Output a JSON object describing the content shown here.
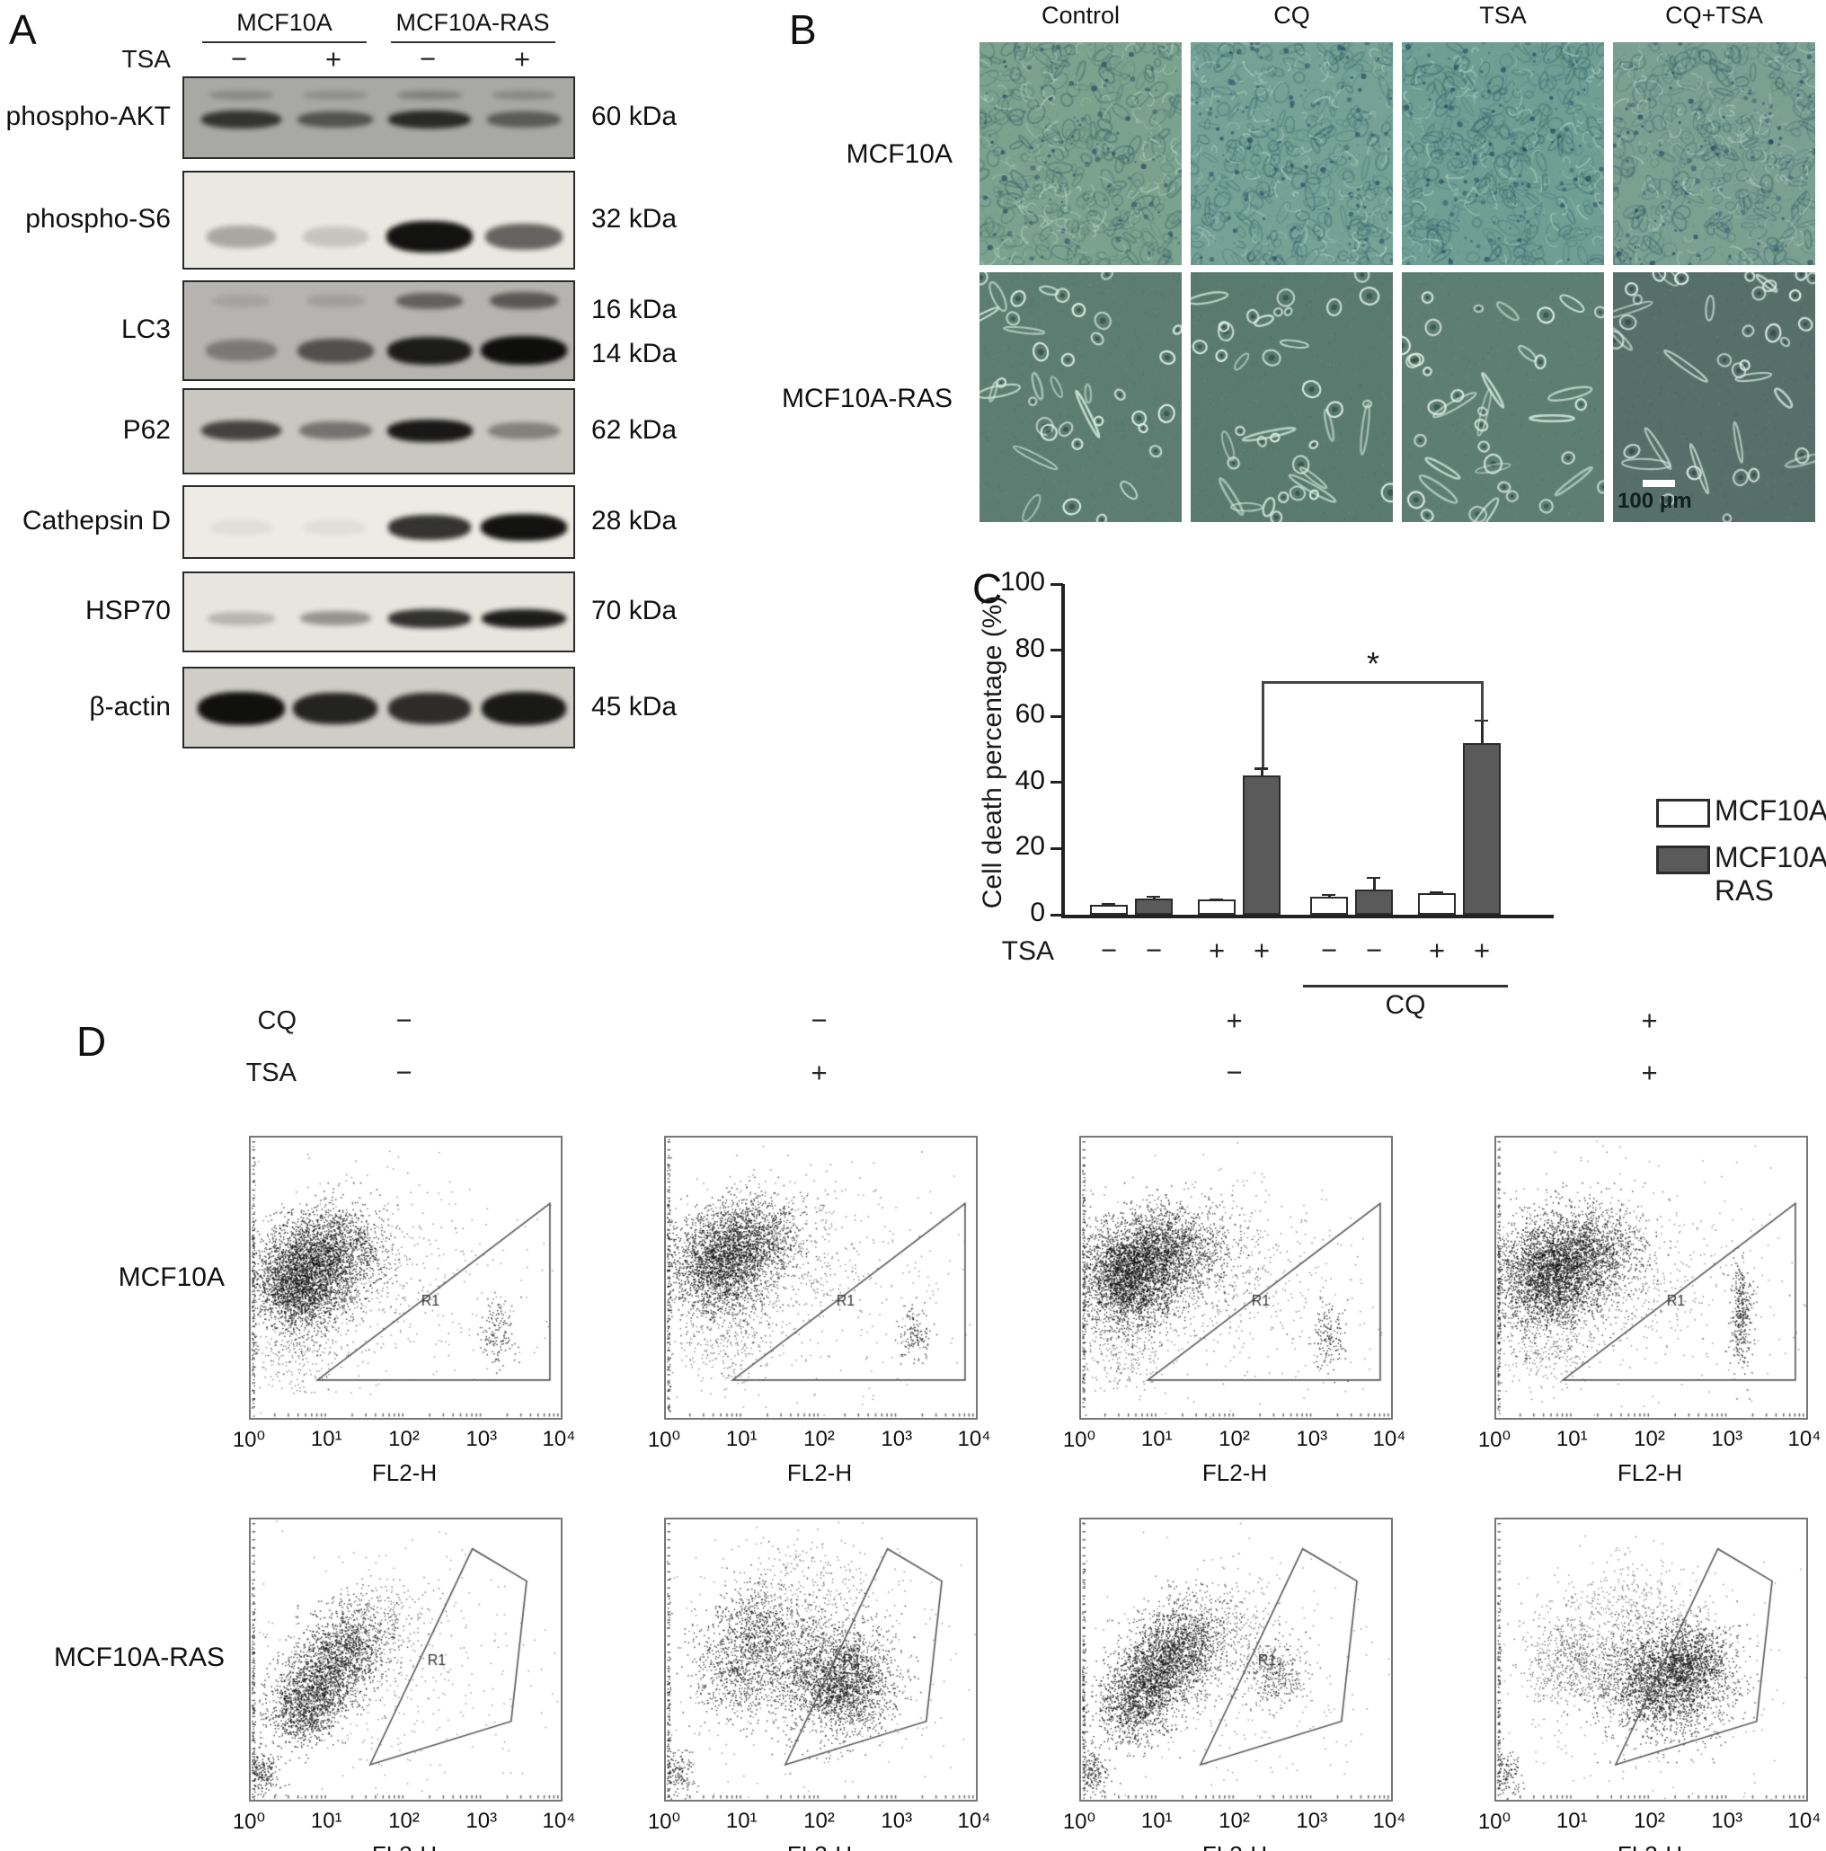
{
  "panelA": {
    "label": "A",
    "groups": [
      "MCF10A",
      "MCF10A-RAS"
    ],
    "tsa_row": {
      "label": "TSA",
      "signs": [
        "−",
        "+",
        "−",
        "+"
      ]
    },
    "blots": [
      {
        "target": "phospho-AKT",
        "kda": [
          "60 kDa"
        ],
        "bg": "#a8a8a4",
        "bands": [
          {
            "y": 0.14,
            "h": 0.13,
            "w": 0.95,
            "alphas": [
              0.2,
              0.16,
              0.25,
              0.2
            ]
          },
          {
            "y": 0.4,
            "h": 0.2,
            "w": 1,
            "alphas": [
              0.75,
              0.55,
              0.82,
              0.5
            ]
          }
        ]
      },
      {
        "target": "phospho-S6",
        "kda": [
          "32 kDa"
        ],
        "bg": "#eae8e2",
        "bands": [
          {
            "y": 0.52,
            "h": 0.26,
            "w": 1,
            "alphas": [
              0.3,
              0.16,
              1,
              0.62
            ]
          }
        ]
      },
      {
        "target": "LC3",
        "kda": [
          "16 kDa",
          "14 kDa"
        ],
        "bg": "#b6b4b0",
        "bands": [
          {
            "y": 0.1,
            "h": 0.17,
            "w": 0.9,
            "alphas": [
              0.1,
              0.12,
              0.5,
              0.55
            ]
          },
          {
            "y": 0.56,
            "h": 0.24,
            "w": 1,
            "alphas": [
              0.35,
              0.6,
              0.92,
              1
            ]
          }
        ]
      },
      {
        "target": "P62",
        "kda": [
          "62 kDa"
        ],
        "bg": "#c9c7c1",
        "bands": [
          {
            "y": 0.36,
            "h": 0.22,
            "w": 1,
            "alphas": [
              0.72,
              0.45,
              0.95,
              0.38
            ]
          }
        ]
      },
      {
        "target": "Cathepsin D",
        "kda": [
          "28 kDa"
        ],
        "bg": "#edebe5",
        "bands": [
          {
            "y": 0.4,
            "h": 0.3,
            "w": 1,
            "alphas": [
              0.05,
              0.05,
              0.85,
              1
            ]
          }
        ]
      },
      {
        "target": "HSP70",
        "kda": [
          "70 kDa"
        ],
        "bg": "#e7e5df",
        "bands": [
          {
            "y": 0.46,
            "h": 0.2,
            "w": 1,
            "alphas": [
              0.22,
              0.38,
              0.85,
              0.95
            ]
          }
        ]
      },
      {
        "target": "β-actin",
        "kda": [
          "45 kDa"
        ],
        "bg": "#cfcdc7",
        "bands": [
          {
            "y": 0.32,
            "h": 0.34,
            "w": 1,
            "alphas": [
              1,
              0.9,
              0.85,
              0.95
            ]
          }
        ]
      }
    ]
  },
  "panelB": {
    "label": "B",
    "columns": [
      "Control",
      "CQ",
      "TSA",
      "CQ+TSA"
    ],
    "rows": [
      {
        "label": "MCF10A",
        "style": "dense",
        "bg": [
          "#7ba28e",
          "#75a295",
          "#6f9e93",
          "#7aa092"
        ]
      },
      {
        "label": "MCF10A-RAS",
        "style": "sparse",
        "bg": [
          "#5d7d72",
          "#5a7a6f",
          "#5e7e73",
          "#566f68"
        ]
      }
    ],
    "scale_bar": "100 μm"
  },
  "panelC": {
    "label": "C"
  },
  "panelD": {
    "label": "D",
    "cq_row": {
      "label": "CQ",
      "signs": [
        "−",
        "−",
        "+",
        "+"
      ]
    },
    "tsa_row": {
      "label": "TSA",
      "signs": [
        "−",
        "+",
        "−",
        "+"
      ]
    },
    "row_labels": [
      "MCF10A",
      "MCF10A-RAS"
    ],
    "xlabel": "FL2-H",
    "xticks": [
      "10⁰",
      "10¹",
      "10²",
      "10³",
      "10⁴"
    ],
    "gate_label": "R1"
  },
  "chart_data": [
    {
      "type": "bar",
      "title": "",
      "ylabel": "Cell death percentage (%)",
      "ylim": [
        0,
        100
      ],
      "yticks": [
        0,
        20,
        40,
        60,
        80,
        100
      ],
      "group_axis": {
        "label": "TSA",
        "signs": [
          "−",
          "−",
          "+",
          "+",
          "−",
          "−",
          "+",
          "+"
        ],
        "cq_label": "CQ",
        "cq_span": [
          4,
          7
        ]
      },
      "series": [
        {
          "name": "MCF10A",
          "color": "#ffffff",
          "values": [
            3,
            4.5,
            5.5,
            6.5
          ],
          "errors": [
            0.5,
            0.5,
            0.8,
            0.5
          ]
        },
        {
          "name": "MCF10A-RAS",
          "color": "#5a5a5a",
          "values": [
            5,
            42,
            7.5,
            52
          ],
          "errors": [
            0.8,
            2.5,
            4,
            7
          ]
        }
      ],
      "significance": {
        "symbol": "*",
        "between": [
          "MCF10A-RAS TSA+",
          "MCF10A-RAS CQ+TSA+"
        ]
      },
      "legend_position": "right",
      "grid": false
    },
    {
      "type": "scatter",
      "xlabel": "FL2-H",
      "xscale": "log",
      "xlim": [
        1,
        10000
      ],
      "rows": [
        "MCF10A",
        "MCF10A-RAS"
      ],
      "conditions": [
        {
          "CQ": "−",
          "TSA": "−"
        },
        {
          "CQ": "−",
          "TSA": "+"
        },
        {
          "CQ": "+",
          "TSA": "−"
        },
        {
          "CQ": "+",
          "TSA": "+"
        }
      ],
      "gate_label": "R1",
      "gates": {
        "triangle": [
          [
            0.215,
            0.865
          ],
          [
            0.965,
            0.865
          ],
          [
            0.965,
            0.235
          ]
        ],
        "polygon": [
          [
            0.385,
            0.875
          ],
          [
            0.715,
            0.105
          ],
          [
            0.89,
            0.22
          ],
          [
            0.84,
            0.72
          ]
        ]
      },
      "gate_label_pos": {
        "triangle": [
          0.55,
          0.6
        ],
        "polygon": [
          0.57,
          0.52
        ]
      },
      "plots": [
        {
          "row": 0,
          "col": 0,
          "gate": "triangle",
          "clusters": [
            [
              0.155,
              0.52,
              0.075,
              0.085,
              2400
            ],
            [
              0.26,
              0.4,
              0.085,
              0.08,
              1400
            ],
            [
              0.3,
              0.47,
              0.16,
              0.14,
              500,
              0.55
            ],
            [
              0.48,
              0.52,
              0.28,
              0.22,
              280,
              0.45
            ],
            [
              0.795,
              0.7,
              0.028,
              0.055,
              140
            ],
            [
              0.006,
              0.55,
              0.004,
              0.27,
              160
            ],
            [
              0.15,
              0.78,
              0.08,
              0.07,
              200,
              0.5
            ]
          ]
        },
        {
          "row": 0,
          "col": 1,
          "gate": "triangle",
          "clusters": [
            [
              0.17,
              0.46,
              0.08,
              0.09,
              2000
            ],
            [
              0.28,
              0.35,
              0.08,
              0.07,
              1000
            ],
            [
              0.32,
              0.44,
              0.17,
              0.15,
              500,
              0.55
            ],
            [
              0.5,
              0.55,
              0.27,
              0.22,
              300,
              0.45
            ],
            [
              0.8,
              0.7,
              0.025,
              0.05,
              130
            ],
            [
              0.006,
              0.55,
              0.004,
              0.27,
              150
            ],
            [
              0.18,
              0.75,
              0.09,
              0.07,
              220,
              0.5
            ]
          ]
        },
        {
          "row": 0,
          "col": 2,
          "gate": "triangle",
          "clusters": [
            [
              0.15,
              0.5,
              0.08,
              0.09,
              2600
            ],
            [
              0.27,
              0.4,
              0.1,
              0.08,
              1600
            ],
            [
              0.35,
              0.47,
              0.18,
              0.14,
              550,
              0.55
            ],
            [
              0.5,
              0.55,
              0.28,
              0.22,
              300,
              0.45
            ],
            [
              0.8,
              0.71,
              0.027,
              0.055,
              150
            ],
            [
              0.006,
              0.55,
              0.004,
              0.27,
              160
            ],
            [
              0.15,
              0.78,
              0.08,
              0.06,
              200,
              0.5
            ]
          ]
        },
        {
          "row": 0,
          "col": 3,
          "gate": "triangle",
          "clusters": [
            [
              0.17,
              0.5,
              0.085,
              0.095,
              2600
            ],
            [
              0.29,
              0.4,
              0.09,
              0.08,
              1200
            ],
            [
              0.33,
              0.47,
              0.17,
              0.14,
              500,
              0.55
            ],
            [
              0.5,
              0.5,
              0.28,
              0.22,
              300,
              0.45
            ],
            [
              0.79,
              0.63,
              0.018,
              0.1,
              320
            ],
            [
              0.006,
              0.55,
              0.004,
              0.27,
              160
            ],
            [
              0.16,
              0.78,
              0.08,
              0.06,
              200,
              0.5
            ]
          ]
        },
        {
          "row": 1,
          "col": 0,
          "gate": "polygon",
          "clusters": [
            [
              0.16,
              0.68,
              0.055,
              0.065,
              800
            ],
            [
              0.235,
              0.57,
              0.065,
              0.075,
              1000
            ],
            [
              0.315,
              0.45,
              0.065,
              0.075,
              800
            ],
            [
              0.42,
              0.36,
              0.09,
              0.08,
              260,
              0.6
            ],
            [
              0.45,
              0.55,
              0.26,
              0.22,
              380,
              0.45
            ],
            [
              0.035,
              0.9,
              0.03,
              0.045,
              220
            ],
            [
              0.006,
              0.65,
              0.004,
              0.25,
              140
            ]
          ]
        },
        {
          "row": 1,
          "col": 1,
          "gate": "polygon",
          "clusters": [
            [
              0.22,
              0.55,
              0.07,
              0.08,
              500
            ],
            [
              0.3,
              0.4,
              0.08,
              0.08,
              700
            ],
            [
              0.52,
              0.55,
              0.1,
              0.1,
              1700
            ],
            [
              0.6,
              0.62,
              0.07,
              0.07,
              600
            ],
            [
              0.45,
              0.5,
              0.27,
              0.24,
              420,
              0.45
            ],
            [
              0.45,
              0.22,
              0.12,
              0.08,
              250,
              0.5
            ],
            [
              0.035,
              0.9,
              0.03,
              0.04,
              150
            ],
            [
              0.006,
              0.65,
              0.004,
              0.25,
              120
            ]
          ]
        },
        {
          "row": 1,
          "col": 2,
          "gate": "polygon",
          "clusters": [
            [
              0.17,
              0.66,
              0.06,
              0.07,
              900
            ],
            [
              0.25,
              0.54,
              0.07,
              0.075,
              1200
            ],
            [
              0.33,
              0.44,
              0.07,
              0.075,
              900
            ],
            [
              0.44,
              0.36,
              0.09,
              0.08,
              280,
              0.6
            ],
            [
              0.62,
              0.55,
              0.05,
              0.06,
              350,
              0.7
            ],
            [
              0.45,
              0.55,
              0.26,
              0.22,
              380,
              0.45
            ],
            [
              0.035,
              0.9,
              0.03,
              0.045,
              200
            ],
            [
              0.006,
              0.65,
              0.004,
              0.25,
              140
            ]
          ]
        },
        {
          "row": 1,
          "col": 3,
          "gate": "polygon",
          "clusters": [
            [
              0.25,
              0.5,
              0.08,
              0.09,
              600,
              0.6
            ],
            [
              0.54,
              0.58,
              0.1,
              0.095,
              2200
            ],
            [
              0.63,
              0.5,
              0.07,
              0.07,
              700
            ],
            [
              0.45,
              0.3,
              0.1,
              0.08,
              300,
              0.5
            ],
            [
              0.45,
              0.55,
              0.27,
              0.22,
              400,
              0.45
            ],
            [
              0.03,
              0.9,
              0.025,
              0.04,
              130
            ],
            [
              0.006,
              0.65,
              0.004,
              0.25,
              110
            ]
          ]
        }
      ]
    }
  ]
}
